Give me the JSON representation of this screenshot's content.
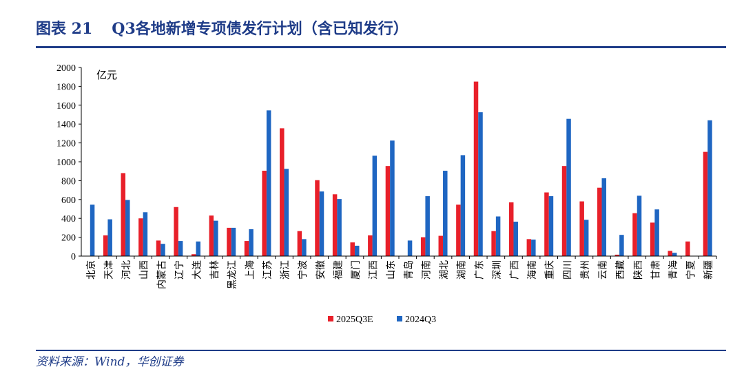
{
  "header": {
    "figure_no": "图表 21",
    "title": "Q3各地新增专项债发行计划（含已知发行）"
  },
  "source": "资料来源：Wind，华创证券",
  "chart_data": {
    "type": "bar",
    "unit": "亿元",
    "ylim": [
      0,
      2000
    ],
    "yticks": [
      0,
      200,
      400,
      600,
      800,
      1000,
      1200,
      1400,
      1600,
      1800,
      2000
    ],
    "legend_position": "bottom",
    "categories": [
      "北京",
      "天津",
      "河北",
      "山西",
      "内蒙古",
      "辽宁",
      "大连",
      "吉林",
      "黑龙江",
      "上海",
      "江苏",
      "浙江",
      "宁波",
      "安徽",
      "福建",
      "厦门",
      "江西",
      "山东",
      "青岛",
      "河南",
      "湖北",
      "湖南",
      "广东",
      "深圳",
      "广西",
      "海南",
      "重庆",
      "四川",
      "贵州",
      "云南",
      "西藏",
      "陕西",
      "甘肃",
      "青海",
      "宁夏",
      "新疆"
    ],
    "series": [
      {
        "name": "2025Q3E",
        "color": "#e8202a",
        "values": [
          0,
          220,
          880,
          400,
          165,
          520,
          20,
          430,
          300,
          160,
          905,
          1355,
          265,
          805,
          655,
          145,
          220,
          955,
          0,
          200,
          215,
          545,
          1850,
          265,
          570,
          180,
          675,
          955,
          580,
          725,
          15,
          455,
          355,
          55,
          155,
          1105
        ]
      },
      {
        "name": "2024Q3",
        "color": "#1f66c2",
        "values": [
          545,
          390,
          595,
          465,
          130,
          160,
          155,
          375,
          300,
          285,
          1545,
          925,
          180,
          685,
          605,
          110,
          1065,
          1225,
          165,
          635,
          905,
          1070,
          1525,
          420,
          365,
          175,
          635,
          1455,
          385,
          825,
          225,
          640,
          495,
          35,
          0,
          1440
        ]
      }
    ]
  }
}
